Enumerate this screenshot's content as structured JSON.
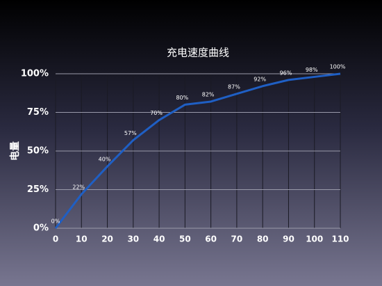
{
  "chart_data": {
    "type": "line",
    "title": "充电速度曲线",
    "y_label": "电量",
    "x": [
      0,
      10,
      20,
      30,
      40,
      50,
      60,
      70,
      80,
      90,
      100,
      110
    ],
    "values": [
      0,
      22,
      40,
      57,
      70,
      80,
      82,
      87,
      92,
      96,
      98,
      100
    ],
    "value_labels": [
      "0%",
      "22%",
      "40%",
      "57%",
      "70%",
      "80%",
      "82%",
      "87%",
      "92%",
      "96%",
      "98%",
      "100%"
    ],
    "color": "#1f5fc4",
    "xlim": [
      0,
      110
    ],
    "xticks": [
      0,
      10,
      20,
      30,
      40,
      50,
      60,
      70,
      80,
      90,
      100,
      110
    ],
    "ylim": [
      0,
      100
    ],
    "yticks": [
      {
        "value": 0,
        "label": "0%"
      },
      {
        "value": 25,
        "label": "25%"
      },
      {
        "value": 50,
        "label": "50%"
      },
      {
        "value": 75,
        "label": "75%"
      },
      {
        "value": 100,
        "label": "100%"
      }
    ],
    "grid": true
  }
}
